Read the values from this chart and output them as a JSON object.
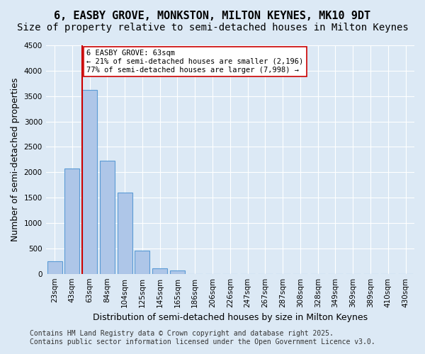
{
  "title": "6, EASBY GROVE, MONKSTON, MILTON KEYNES, MK10 9DT",
  "subtitle": "Size of property relative to semi-detached houses in Milton Keynes",
  "xlabel": "Distribution of semi-detached houses by size in Milton Keynes",
  "ylabel": "Number of semi-detached properties",
  "bin_labels": [
    "23sqm",
    "43sqm",
    "63sqm",
    "84sqm",
    "104sqm",
    "125sqm",
    "145sqm",
    "165sqm",
    "186sqm",
    "206sqm",
    "226sqm",
    "247sqm",
    "267sqm",
    "287sqm",
    "308sqm",
    "328sqm",
    "349sqm",
    "369sqm",
    "389sqm",
    "410sqm",
    "430sqm"
  ],
  "bar_values": [
    250,
    2080,
    3620,
    2220,
    1600,
    460,
    110,
    65,
    0,
    0,
    0,
    0,
    0,
    0,
    0,
    0,
    0,
    0,
    0,
    0,
    0
  ],
  "bar_color": "#aec6e8",
  "bar_edge_color": "#5b9bd5",
  "highlight_index": 2,
  "vline_x": 2,
  "vline_color": "#cc0000",
  "annotation_title": "6 EASBY GROVE: 63sqm",
  "annotation_line1": "← 21% of semi-detached houses are smaller (2,196)",
  "annotation_line2": "77% of semi-detached houses are larger (7,998) →",
  "annotation_box_color": "#ffffff",
  "annotation_box_edge": "#cc0000",
  "ylim": [
    0,
    4500
  ],
  "yticks": [
    0,
    500,
    1000,
    1500,
    2000,
    2500,
    3000,
    3500,
    4000,
    4500
  ],
  "footer_line1": "Contains HM Land Registry data © Crown copyright and database right 2025.",
  "footer_line2": "Contains public sector information licensed under the Open Government Licence v3.0.",
  "bg_color": "#dce9f5",
  "plot_bg_color": "#dce9f5",
  "title_fontsize": 11,
  "subtitle_fontsize": 10,
  "axis_label_fontsize": 9,
  "tick_fontsize": 7.5,
  "footer_fontsize": 7
}
